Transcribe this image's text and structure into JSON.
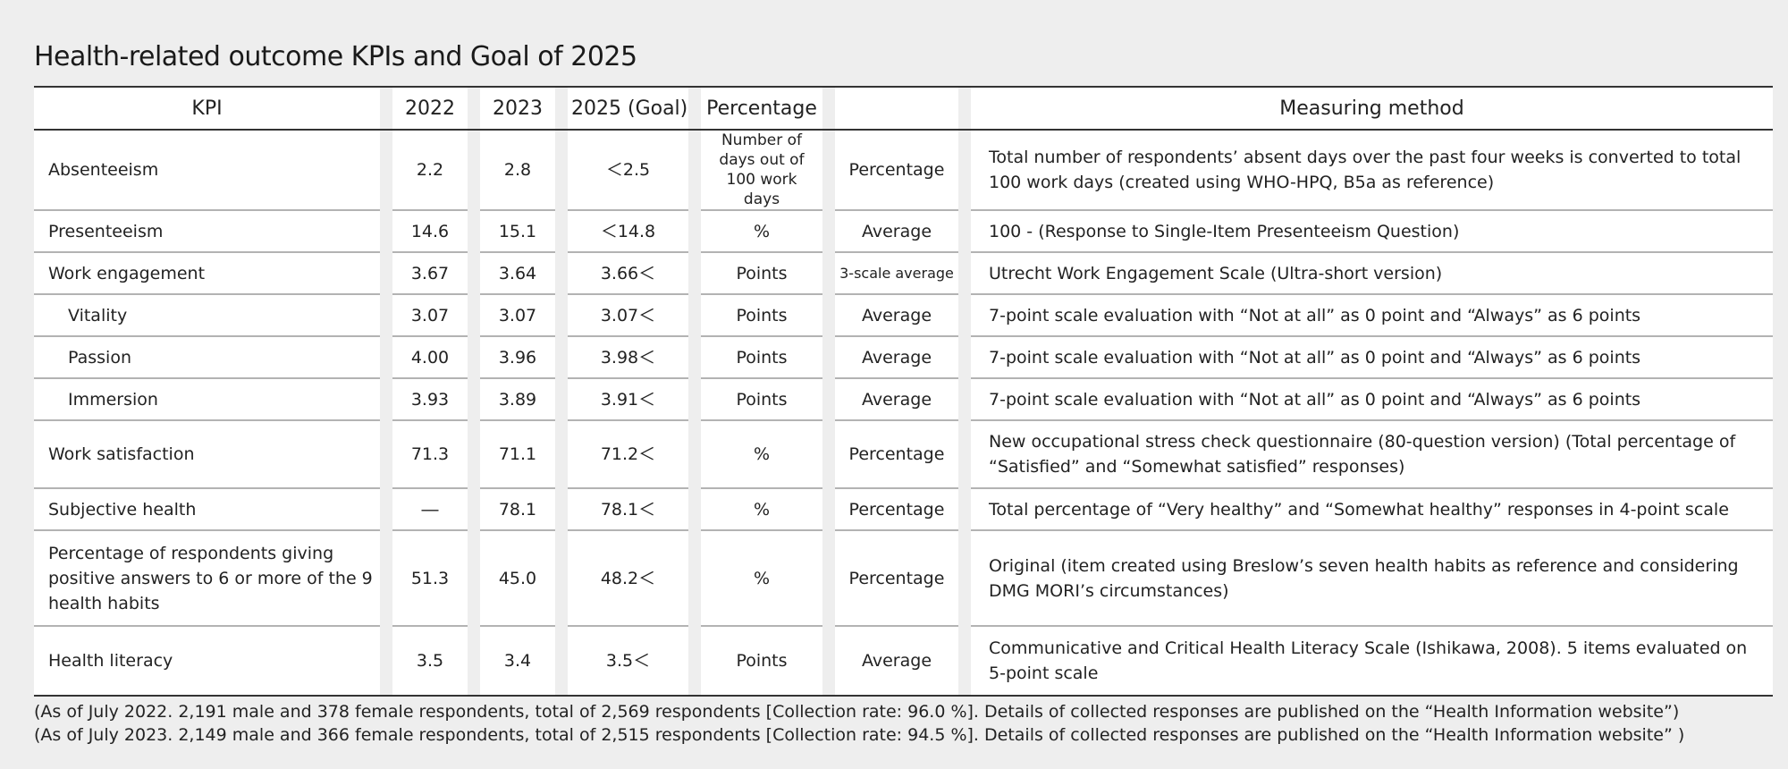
{
  "title": "Health-related outcome KPIs and Goal of 2025",
  "headers": {
    "kpi": "KPI",
    "y2022": "2022",
    "y2023": "2023",
    "goal": "2025 (Goal)",
    "unit": "Percentage",
    "measure": "",
    "method": "Measuring method"
  },
  "rows": [
    {
      "kpi": "Absenteeism",
      "y2022": "2.2",
      "y2023": "2.8",
      "goal": "＜2.5",
      "unit": "Number of days out of 100 work days",
      "measure": "Percentage",
      "method": "Total number of respondents’ absent days over the past four weeks is converted to total 100 work days (created using WHO-HPQ, B5a as reference)"
    },
    {
      "kpi": "Presenteeism",
      "y2022": "14.6",
      "y2023": "15.1",
      "goal": "＜14.8",
      "unit": "%",
      "measure": "Average",
      "method": "100 - (Response to Single-Item Presenteeism Question)"
    },
    {
      "kpi": "Work engagement",
      "y2022": "3.67",
      "y2023": "3.64",
      "goal": "3.66＜",
      "unit": "Points",
      "measure": "3-scale average",
      "method": "Utrecht Work Engagement Scale (Ultra-short version)"
    },
    {
      "kpi": "Vitality",
      "y2022": "3.07",
      "y2023": "3.07",
      "goal": "3.07＜",
      "unit": "Points",
      "measure": "Average",
      "method": "7-point scale evaluation with “Not at all” as 0 point and “Always” as 6 points"
    },
    {
      "kpi": "Passion",
      "y2022": "4.00",
      "y2023": "3.96",
      "goal": "3.98＜",
      "unit": "Points",
      "measure": "Average",
      "method": "7-point scale evaluation with “Not at all” as 0 point and “Always” as 6 points"
    },
    {
      "kpi": "Immersion",
      "y2022": "3.93",
      "y2023": "3.89",
      "goal": "3.91＜",
      "unit": "Points",
      "measure": "Average",
      "method": "7-point scale evaluation with “Not at all” as 0 point and “Always” as 6 points"
    },
    {
      "kpi": "Work satisfaction",
      "y2022": "71.3",
      "y2023": "71.1",
      "goal": "71.2＜",
      "unit": "%",
      "measure": "Percentage",
      "method": "New occupational stress check questionnaire (80-question version) (Total percentage of “Satisfied” and “Somewhat satisfied” responses)"
    },
    {
      "kpi": "Subjective health",
      "y2022": "―",
      "y2023": "78.1",
      "goal": "78.1＜",
      "unit": "%",
      "measure": "Percentage",
      "method": "Total percentage of “Very healthy” and “Somewhat healthy” responses in 4-point scale"
    },
    {
      "kpi": "Percentage of respondents giving positive answers to 6 or more of the 9 health habits",
      "y2022": "51.3",
      "y2023": "45.0",
      "goal": "48.2＜",
      "unit": "%",
      "measure": "Percentage",
      "method": "Original (item created using Breslow’s seven health habits as reference and considering DMG MORI’s circumstances)"
    },
    {
      "kpi": "Health literacy",
      "y2022": "3.5",
      "y2023": "3.4",
      "goal": "3.5＜",
      "unit": "Points",
      "measure": "Average",
      "method": "Communicative and Critical Health Literacy Scale (Ishikawa, 2008). 5 items evaluated on 5-point scale"
    }
  ],
  "notes": [
    "(As of July 2022. 2,191 male and 378 female respondents, total of 2,569 respondents [Collection rate: 96.0 %]. Details of collected responses are published on the “Health Information website”)",
    "(As of July 2023. 2,149 male and 366 female respondents, total of 2,515 respondents [Collection rate: 94.5 %]. Details of collected responses are published on the “Health Information website” )"
  ]
}
